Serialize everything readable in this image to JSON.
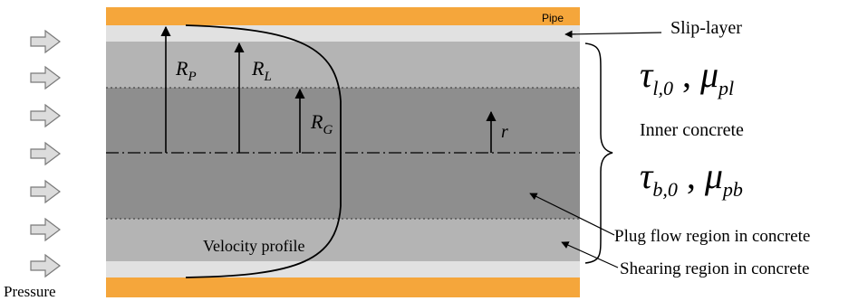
{
  "labels": {
    "pipe": "Pipe",
    "slip_layer": "Slip-layer",
    "inner_concrete": "Inner concrete",
    "plug_flow": "Plug flow region in concrete",
    "shearing": "Shearing region in concrete",
    "velocity_profile": "Velocity profile",
    "pressure": "Pressure"
  },
  "radii": {
    "rp": {
      "base": "R",
      "sub": "P"
    },
    "rl": {
      "base": "R",
      "sub": "L"
    },
    "rg": {
      "base": "R",
      "sub": "G"
    },
    "r": "r"
  },
  "equations": {
    "slip": {
      "tau": "τ",
      "tau_sub": "l,0",
      "sep": ",",
      "mu": "μ",
      "mu_sub": "pl"
    },
    "inner": {
      "tau": "τ",
      "tau_sub": "b,0",
      "sep": ",",
      "mu": "μ",
      "mu_sub": "pb"
    }
  },
  "pressure_arrow_count": 7,
  "colors": {
    "pipe": "#f5a63b",
    "slip_layer": "#e1e1e1",
    "shearing": "#b4b4b4",
    "plug": "#8e8e8e",
    "ink": "#000000"
  }
}
